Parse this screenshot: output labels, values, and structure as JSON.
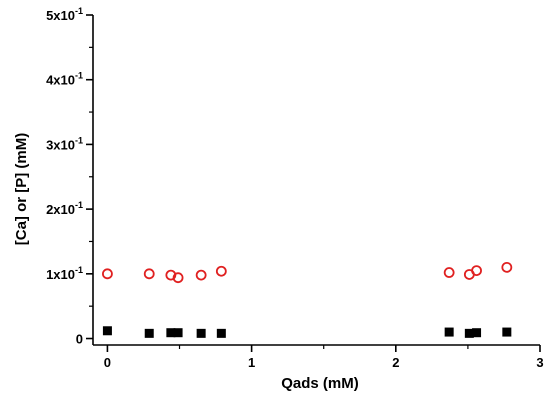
{
  "chart_data": {
    "type": "scatter",
    "title": "",
    "xlabel": "Qads (mM)",
    "ylabel": "[Ca] or [P] (mM)",
    "xlim": [
      -0.1,
      3.0
    ],
    "ylim": [
      -0.01,
      0.5
    ],
    "x_ticks": [
      {
        "value": 0,
        "label": "0"
      },
      {
        "value": 1,
        "label": "1"
      },
      {
        "value": 2,
        "label": "2"
      },
      {
        "value": 3,
        "label": "3"
      }
    ],
    "y_ticks": [
      {
        "value": 0,
        "mant": "0",
        "exp": ""
      },
      {
        "value": 0.1,
        "mant": "1x10",
        "exp": "-1"
      },
      {
        "value": 0.2,
        "mant": "2x10",
        "exp": "-1"
      },
      {
        "value": 0.3,
        "mant": "3x10",
        "exp": "-1"
      },
      {
        "value": 0.4,
        "mant": "4x10",
        "exp": "-1"
      },
      {
        "value": 0.5,
        "mant": "5x10",
        "exp": "-1"
      }
    ],
    "grid": false,
    "legend": "none",
    "series": [
      {
        "marker": "open-circle",
        "color": "#e02020",
        "points": [
          {
            "x": 0.0,
            "y": 0.1
          },
          {
            "x": 0.29,
            "y": 0.1
          },
          {
            "x": 0.44,
            "y": 0.098
          },
          {
            "x": 0.49,
            "y": 0.094
          },
          {
            "x": 0.65,
            "y": 0.098
          },
          {
            "x": 0.79,
            "y": 0.104
          },
          {
            "x": 2.37,
            "y": 0.102
          },
          {
            "x": 2.51,
            "y": 0.099
          },
          {
            "x": 2.56,
            "y": 0.105
          },
          {
            "x": 2.77,
            "y": 0.11
          }
        ]
      },
      {
        "marker": "filled-square",
        "color": "#000000",
        "points": [
          {
            "x": 0.0,
            "y": 0.012
          },
          {
            "x": 0.29,
            "y": 0.008
          },
          {
            "x": 0.44,
            "y": 0.009
          },
          {
            "x": 0.49,
            "y": 0.009
          },
          {
            "x": 0.65,
            "y": 0.008
          },
          {
            "x": 0.79,
            "y": 0.008
          },
          {
            "x": 2.37,
            "y": 0.01
          },
          {
            "x": 2.51,
            "y": 0.008
          },
          {
            "x": 2.56,
            "y": 0.009
          },
          {
            "x": 2.77,
            "y": 0.01
          }
        ]
      }
    ]
  }
}
